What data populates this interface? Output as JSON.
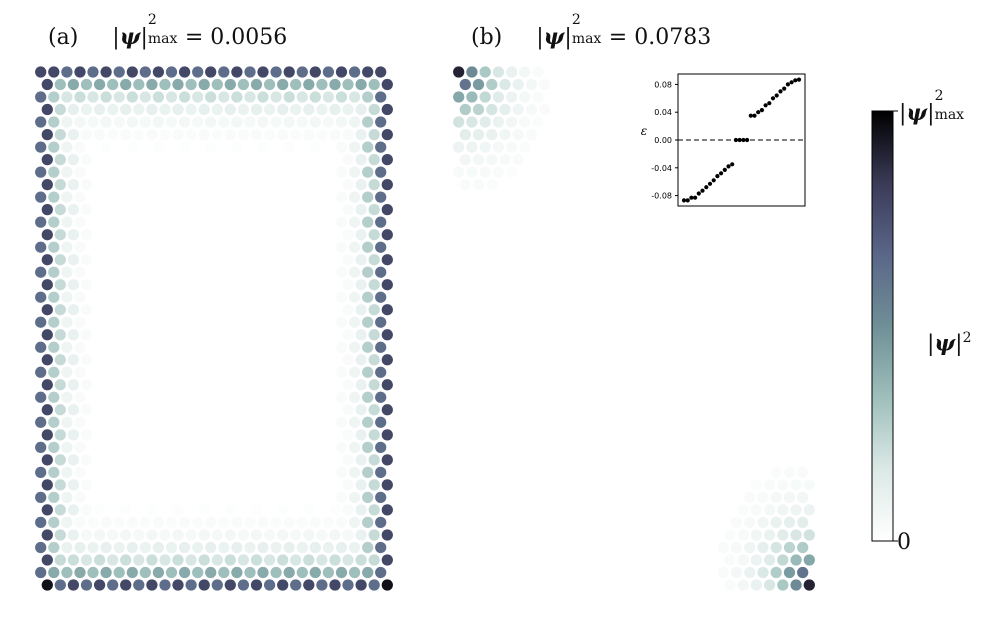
{
  "panels": [
    {
      "label": "(a)",
      "max_value": "0.0056",
      "max_value_num": 0.0056,
      "state": "edge"
    },
    {
      "label": "(b)",
      "max_value": "0.0783",
      "max_value_num": 0.0783,
      "state": "corner"
    }
  ],
  "max_symbol": "max",
  "colorbar": {
    "top_label": "max",
    "bottom_label": "0",
    "title": "|ψ|²",
    "colors": [
      "#ffffff",
      "#dbe9e6",
      "#9ebfbb",
      "#6f8f97",
      "#5a6688",
      "#3a3a57",
      "#000000"
    ]
  },
  "chart_data": {
    "type": "scatter",
    "title": "",
    "xlabel": "",
    "ylabel": "ε",
    "ylim": [
      -0.095,
      0.095
    ],
    "yticks": [
      "0.08",
      "0.04",
      "0.00",
      "-0.04",
      "-0.08"
    ],
    "ytick_values": [
      0.08,
      0.04,
      0.0,
      -0.04,
      -0.08
    ],
    "reference_line": 0.0,
    "x": [
      0,
      1,
      2,
      3,
      4,
      5,
      6,
      7,
      8,
      9,
      10,
      11,
      12,
      13,
      14,
      15,
      16,
      17,
      18,
      19,
      20,
      21,
      22,
      23,
      24,
      25,
      26,
      27,
      28,
      29,
      30,
      31
    ],
    "values": [
      -0.087,
      -0.087,
      -0.083,
      -0.083,
      -0.077,
      -0.073,
      -0.068,
      -0.063,
      -0.058,
      -0.052,
      -0.048,
      -0.043,
      -0.038,
      -0.035,
      0.0,
      0.0,
      0.0,
      0.0,
      0.035,
      0.035,
      0.04,
      0.043,
      0.05,
      0.053,
      0.06,
      0.064,
      0.07,
      0.074,
      0.08,
      0.083,
      0.086,
      0.087
    ]
  }
}
